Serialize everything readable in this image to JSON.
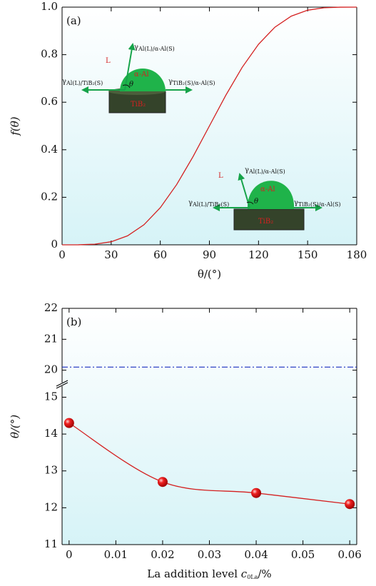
{
  "chart_data": [
    {
      "type": "line",
      "panel_label": "(a)",
      "xlabel": "θ/(°)",
      "ylabel": "f(θ)",
      "x": [
        0,
        10,
        20,
        30,
        40,
        50,
        60,
        70,
        80,
        90,
        100,
        110,
        120,
        130,
        140,
        150,
        160,
        170,
        180
      ],
      "series": [
        {
          "color": "#d42020",
          "values": [
            0,
            0.0002,
            0.0027,
            0.0129,
            0.0379,
            0.0843,
            0.1563,
            0.2535,
            0.3711,
            0.5,
            0.6289,
            0.7465,
            0.8438,
            0.9157,
            0.9621,
            0.9871,
            0.9973,
            0.9998,
            1
          ]
        }
      ],
      "xlim": [
        0,
        180
      ],
      "xticks": [
        0,
        30,
        60,
        90,
        120,
        150,
        180
      ],
      "ylim": [
        0,
        1
      ],
      "yticks": [
        0,
        0.2,
        0.4,
        0.6,
        0.8,
        {
          "value": 1,
          "label": "1.0"
        }
      ],
      "annotations": [
        {
          "text": "L",
          "color": "#d42020"
        },
        {
          "text": "γ",
          "sub": "Al(L)/α-Al(S)"
        },
        {
          "text": "α-Al",
          "color": "#d42020"
        },
        {
          "text": "θ"
        },
        {
          "text": "γ",
          "sub": "Al(L)/TiB₂(S)"
        },
        {
          "text": "γ",
          "sub": "TiB₂(S)/α-Al(S)"
        },
        {
          "text": "TiB₂",
          "color": "#d42020"
        },
        {
          "text": "L",
          "color": "#d42020"
        },
        {
          "text": "γ",
          "sub": "Al(L)/α-Al(S)"
        },
        {
          "text": "α-Al",
          "color": "#d42020"
        },
        {
          "text": "θ"
        },
        {
          "text": "γ",
          "sub": "Al(L)/TiB₂(S)"
        },
        {
          "text": "γ",
          "sub": "TiB₂(S)/α-Al(S)"
        },
        {
          "text": "TiB₂",
          "color": "#d42020"
        }
      ]
    },
    {
      "type": "line",
      "panel_label": "(b)",
      "ylabel": "θ/(°)",
      "xlabel": {
        "text": "La addition level ",
        "var": "c",
        "sub": "0La",
        "unit": "/%"
      },
      "x": [
        0,
        0.02,
        0.04,
        0.06
      ],
      "series": [
        {
          "color": "#d42020",
          "values": [
            14.3,
            12.7,
            12.4,
            12.1
          ]
        }
      ],
      "markers": true,
      "xlim": [
        -0.0015,
        0.0615
      ],
      "xticks": [
        0,
        0.01,
        0.02,
        0.03,
        0.04,
        0.05,
        0.06
      ],
      "ylim": [
        11,
        22
      ],
      "ybreak": [
        15.3,
        19.6
      ],
      "yticks": [
        11,
        12,
        13,
        14,
        15,
        20,
        21,
        22
      ],
      "hlines": [
        {
          "value": 20.1,
          "color": "#1a2fbf",
          "style": "dashdot"
        }
      ]
    }
  ]
}
